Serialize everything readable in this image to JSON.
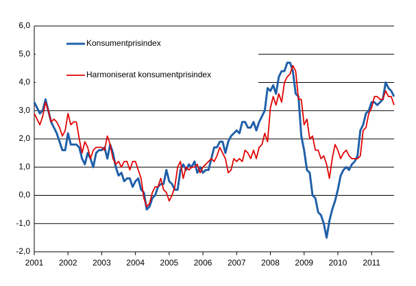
{
  "chart_data": {
    "type": "line",
    "categories": [
      "2001",
      null,
      null,
      null,
      null,
      null,
      null,
      null,
      null,
      null,
      null,
      null,
      "2002",
      null,
      null,
      null,
      null,
      null,
      null,
      null,
      null,
      null,
      null,
      null,
      "2003",
      null,
      null,
      null,
      null,
      null,
      null,
      null,
      null,
      null,
      null,
      null,
      "2004",
      null,
      null,
      null,
      null,
      null,
      null,
      null,
      null,
      null,
      null,
      null,
      "2005",
      null,
      null,
      null,
      null,
      null,
      null,
      null,
      null,
      null,
      null,
      null,
      "2006",
      null,
      null,
      null,
      null,
      null,
      null,
      null,
      null,
      null,
      null,
      null,
      "2007",
      null,
      null,
      null,
      null,
      null,
      null,
      null,
      null,
      null,
      null,
      null,
      "2008",
      null,
      null,
      null,
      null,
      null,
      null,
      null,
      null,
      null,
      null,
      null,
      "2009",
      null,
      null,
      null,
      null,
      null,
      null,
      null,
      null,
      null,
      null,
      null,
      "2010",
      null,
      null,
      null,
      null,
      null,
      null,
      null,
      null,
      null,
      null,
      null,
      "2011",
      null,
      null,
      null,
      null,
      null,
      null,
      null,
      null
    ],
    "series": [
      {
        "name": "Konsumentprisindex",
        "color": "#1f5fa8",
        "values": [
          3.3,
          3.1,
          2.9,
          3.0,
          3.4,
          3.0,
          2.6,
          2.4,
          2.2,
          1.9,
          1.6,
          1.6,
          2.2,
          1.8,
          1.8,
          1.8,
          1.7,
          1.3,
          1.1,
          1.5,
          1.3,
          1.0,
          1.5,
          1.6,
          1.6,
          1.7,
          1.3,
          1.8,
          1.5,
          1.0,
          0.7,
          0.8,
          0.5,
          0.6,
          0.6,
          0.3,
          0.5,
          0.6,
          0.2,
          0.1,
          -0.5,
          -0.4,
          -0.1,
          0.0,
          0.3,
          0.4,
          0.4,
          0.9,
          0.5,
          0.4,
          0.2,
          0.2,
          0.9,
          1.1,
          0.9,
          1.1,
          1.0,
          1.2,
          0.8,
          1.0,
          0.8,
          0.9,
          0.9,
          1.3,
          1.7,
          1.7,
          1.9,
          1.9,
          1.5,
          1.9,
          2.1,
          2.2,
          2.3,
          2.2,
          2.6,
          2.6,
          2.4,
          2.4,
          2.6,
          2.3,
          2.6,
          2.8,
          3.0,
          3.8,
          3.7,
          3.9,
          3.6,
          4.2,
          4.4,
          4.4,
          4.7,
          4.7,
          4.4,
          3.6,
          3.5,
          2.1,
          1.6,
          0.9,
          0.8,
          0.0,
          -0.1,
          -0.6,
          -0.7,
          -1.0,
          -1.5,
          -0.9,
          -0.5,
          -0.2,
          0.2,
          0.7,
          0.9,
          1.0,
          0.9,
          1.1,
          1.2,
          1.4,
          2.3,
          2.5,
          2.9,
          3.0,
          3.3,
          3.3,
          3.2,
          3.3,
          3.4,
          4.0,
          3.8,
          3.7,
          3.5
        ]
      },
      {
        "name": "Harmoniserat konsumentprisindex",
        "color": "#e00000",
        "values": [
          2.9,
          2.7,
          2.5,
          2.8,
          3.3,
          3.0,
          2.6,
          2.7,
          2.6,
          2.4,
          2.1,
          2.3,
          2.9,
          2.5,
          2.6,
          2.6,
          2.0,
          1.5,
          1.9,
          1.7,
          1.3,
          1.6,
          1.7,
          1.7,
          1.7,
          1.6,
          2.1,
          1.8,
          1.3,
          1.1,
          1.2,
          1.0,
          1.2,
          1.2,
          0.9,
          1.2,
          1.2,
          0.9,
          0.6,
          -0.1,
          -0.4,
          -0.3,
          0.1,
          0.3,
          0.3,
          0.6,
          0.2,
          0.1,
          -0.2,
          0.0,
          0.3,
          1.0,
          1.2,
          0.6,
          1.0,
          0.9,
          1.0,
          1.0,
          1.1,
          0.8,
          1.0,
          1.1,
          1.2,
          1.3,
          1.2,
          1.4,
          1.7,
          1.5,
          1.3,
          0.8,
          0.9,
          1.3,
          1.2,
          1.3,
          1.2,
          1.6,
          1.5,
          1.3,
          1.6,
          1.3,
          1.7,
          1.8,
          2.2,
          1.9,
          3.1,
          3.5,
          3.2,
          3.6,
          3.3,
          4.0,
          4.2,
          4.3,
          4.6,
          4.4,
          3.4,
          3.4,
          2.5,
          2.7,
          2.0,
          2.1,
          1.6,
          1.6,
          1.3,
          1.4,
          1.1,
          0.6,
          1.3,
          1.8,
          1.6,
          1.3,
          1.5,
          1.6,
          1.4,
          1.3,
          1.3,
          1.3,
          1.4,
          2.3,
          2.4,
          2.9,
          3.1,
          3.5,
          3.5,
          3.4,
          3.4,
          3.7,
          3.5,
          3.5,
          3.2
        ]
      }
    ],
    "ylim": [
      -2,
      6
    ],
    "yticks": [
      {
        "value": -2,
        "label": "-2,0"
      },
      {
        "value": -1,
        "label": "-1,0"
      },
      {
        "value": 0,
        "label": "0,0"
      },
      {
        "value": 1,
        "label": "1,0"
      },
      {
        "value": 2,
        "label": "2,0"
      },
      {
        "value": 3,
        "label": "3,0"
      },
      {
        "value": 4,
        "label": "4,0"
      },
      {
        "value": 5,
        "label": "5,0"
      },
      {
        "value": 6,
        "label": "6,0"
      }
    ],
    "grid": true,
    "legend": "upper-left"
  }
}
